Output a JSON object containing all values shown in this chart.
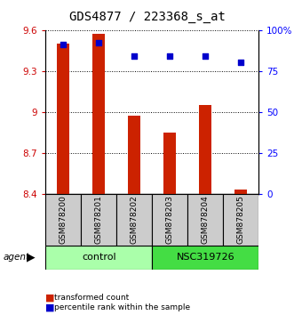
{
  "title": "GDS4877 / 223368_s_at",
  "samples": [
    "GSM878200",
    "GSM878201",
    "GSM878202",
    "GSM878203",
    "GSM878204",
    "GSM878205"
  ],
  "bar_values": [
    9.5,
    9.57,
    8.97,
    8.85,
    9.05,
    8.43
  ],
  "percentile_values": [
    91,
    92,
    84,
    84,
    84,
    80
  ],
  "bar_color": "#CC2200",
  "dot_color": "#0000CC",
  "ylim_left": [
    8.4,
    9.6
  ],
  "ylim_right": [
    0,
    100
  ],
  "yticks_left": [
    8.4,
    8.7,
    9.0,
    9.3,
    9.6
  ],
  "ytick_labels_left": [
    "8.4",
    "8.7",
    "9",
    "9.3",
    "9.6"
  ],
  "yticks_right": [
    0,
    25,
    50,
    75,
    100
  ],
  "ytick_labels_right": [
    "0",
    "25",
    "50",
    "75",
    "100%"
  ],
  "groups": [
    {
      "label": "control",
      "indices": [
        0,
        1,
        2
      ],
      "color": "#AAFFAA"
    },
    {
      "label": "NSC319726",
      "indices": [
        3,
        4,
        5
      ],
      "color": "#44DD44"
    }
  ],
  "agent_label": "agent",
  "bar_width": 0.35,
  "background_label": "#CCCCCC",
  "legend_bar_label": "transformed count",
  "legend_dot_label": "percentile rank within the sample",
  "title_fontsize": 10,
  "tick_fontsize": 7.5,
  "label_fontsize": 8
}
